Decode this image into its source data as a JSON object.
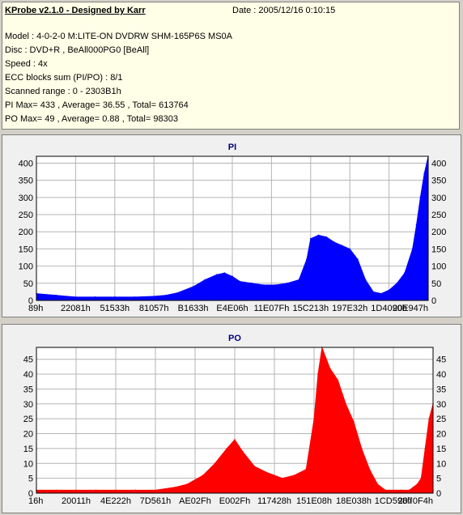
{
  "header": {
    "title": "KProbe v2.1.0 - Designed by Karr",
    "date": "Date : 2005/12/16 0:10:15",
    "lines": [
      "Model : 4-0-2-0 M:LITE-ON DVDRW SHM-165P6S MS0A",
      "Disc : DVD+R , BeAll000PG0 [BeAll]",
      "Speed : 4x",
      "ECC blocks sum (PI/PO) : 8/1",
      "Scanned range : 0 - 2303B1h",
      "PI Max= 433 , Average= 36.55 , Total= 613764",
      "PO Max= 49 , Average= 0.88 , Total= 98303"
    ]
  },
  "colors": {
    "pi": "#0000ff",
    "po": "#ff0000",
    "grid": "#b4b4b4",
    "plot_bg": "#ffffff",
    "title": "#000080"
  },
  "chart_data": [
    {
      "type": "area",
      "title": "PI",
      "ylim": [
        0,
        420
      ],
      "yticks": [
        0,
        50,
        100,
        150,
        200,
        250,
        300,
        350,
        400
      ],
      "xticks": [
        "89h",
        "22081h",
        "51533h",
        "81057h",
        "B1633h",
        "E4E06h",
        "11E07Fh",
        "15C213h",
        "197E32h",
        "1D4090h",
        "20E947h"
      ],
      "x_range": [
        0,
        1
      ],
      "x": [
        0,
        0.05,
        0.1,
        0.15,
        0.2,
        0.25,
        0.3,
        0.33,
        0.36,
        0.4,
        0.43,
        0.46,
        0.48,
        0.5,
        0.52,
        0.55,
        0.58,
        0.61,
        0.64,
        0.67,
        0.69,
        0.7,
        0.72,
        0.74,
        0.76,
        0.78,
        0.8,
        0.82,
        0.84,
        0.86,
        0.88,
        0.9,
        0.92,
        0.94,
        0.96,
        0.97,
        0.98,
        0.99,
        1
      ],
      "values": [
        20,
        15,
        10,
        10,
        10,
        10,
        12,
        15,
        22,
        40,
        60,
        75,
        80,
        70,
        55,
        50,
        45,
        45,
        50,
        60,
        120,
        180,
        190,
        185,
        170,
        160,
        150,
        120,
        60,
        25,
        20,
        30,
        50,
        80,
        150,
        220,
        300,
        370,
        420
      ]
    },
    {
      "type": "area",
      "title": "PO",
      "ylim": [
        0,
        49
      ],
      "yticks": [
        0,
        5,
        10,
        15,
        20,
        25,
        30,
        35,
        40,
        45
      ],
      "xticks": [
        "16h",
        "20011h",
        "4E222h",
        "7D561h",
        "AE02Fh",
        "E002Fh",
        "117428h",
        "151E08h",
        "18E038h",
        "1CD598h",
        "2070F4h"
      ],
      "x_range": [
        0,
        1
      ],
      "x": [
        0,
        0.05,
        0.1,
        0.15,
        0.2,
        0.25,
        0.3,
        0.35,
        0.38,
        0.42,
        0.45,
        0.48,
        0.5,
        0.52,
        0.55,
        0.58,
        0.62,
        0.65,
        0.68,
        0.7,
        0.71,
        0.72,
        0.74,
        0.76,
        0.78,
        0.8,
        0.82,
        0.84,
        0.86,
        0.88,
        0.9,
        0.92,
        0.94,
        0.95,
        0.96,
        0.97,
        0.98,
        0.99,
        1
      ],
      "values": [
        1,
        1,
        1,
        1,
        1,
        1,
        1,
        2,
        3,
        6,
        10,
        15,
        18,
        14,
        9,
        7,
        5,
        6,
        8,
        25,
        40,
        49,
        42,
        38,
        30,
        24,
        15,
        8,
        3,
        1,
        1,
        1,
        1,
        2,
        3,
        5,
        15,
        25,
        30
      ]
    }
  ]
}
